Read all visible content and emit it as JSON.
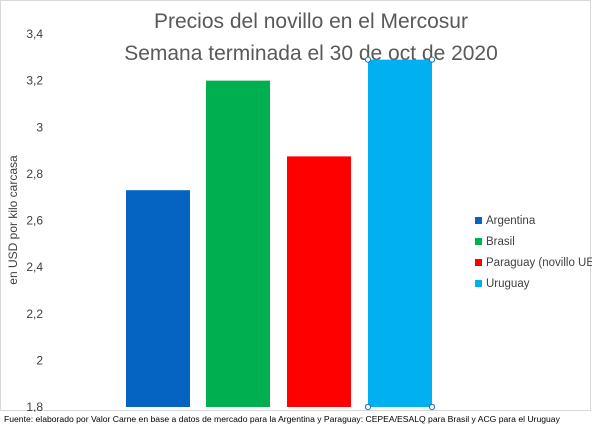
{
  "chart_data": {
    "type": "bar",
    "title": "Precios del novillo en el Mercosur",
    "subtitle": "Semana terminada el 30 de oct de 2020",
    "xlabel": "",
    "ylabel": "en USD por kilo carcasa",
    "ylim": [
      1.8,
      3.4
    ],
    "yticks": [
      "1,8",
      "2",
      "2,2",
      "2,4",
      "2,6",
      "2,8",
      "3",
      "3,2",
      "3,4"
    ],
    "grid": false,
    "legend_position": "right",
    "series": [
      {
        "name": "Argentina",
        "value": 2.73,
        "color": "#0563c1"
      },
      {
        "name": "Brasil",
        "value": 3.2,
        "color": "#00b050"
      },
      {
        "name": "Paraguay (novillo UE)",
        "value": 2.875,
        "color": "#ff0000"
      },
      {
        "name": "Uruguay",
        "value": 3.29,
        "color": "#00b0f0"
      }
    ]
  },
  "footer": {
    "source": "Fuente: elaborado por Valor Carne en base a datos de mercado para la Argentina y Paraguay: CEPEA/ESALQ para Brasil y ACG para el Uruguay"
  }
}
